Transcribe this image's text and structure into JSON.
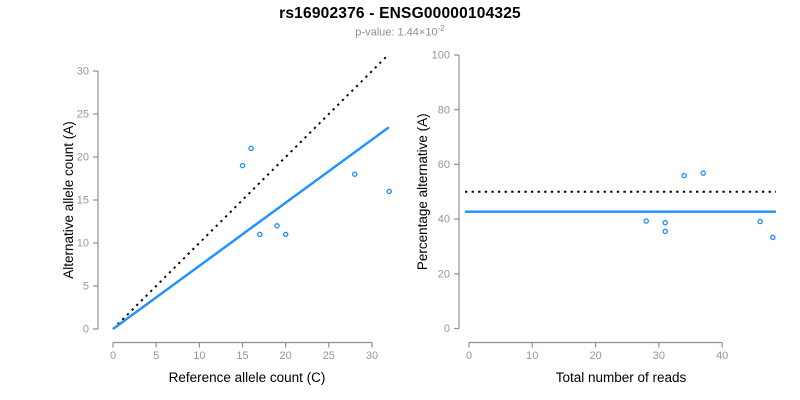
{
  "title": "rs16902376 - ENSG00000104325",
  "subtitle": {
    "prefix": "p-value: 1.44×10",
    "exponent": "-2"
  },
  "colors": {
    "accent_blue": "#1e90ff",
    "axis_gray": "#909090",
    "tick_label_gray": "#969696",
    "text_black": "#000000",
    "subtitle_gray": "#8f8f8f"
  },
  "chart_data": [
    {
      "type": "scatter",
      "panel": "left",
      "xlabel": "Reference allele count (C)",
      "ylabel": "Alternative allele count (A)",
      "xlim": [
        0,
        32
      ],
      "ylim": [
        0,
        32
      ],
      "xticks": [
        0,
        5,
        10,
        15,
        20,
        25,
        30
      ],
      "yticks": [
        0,
        5,
        10,
        15,
        20,
        25,
        30
      ],
      "grid": false,
      "legend": null,
      "marker": "open-circle",
      "marker_color": "#1e90ff",
      "points": [
        [
          15,
          19
        ],
        [
          16,
          21
        ],
        [
          17,
          11
        ],
        [
          19,
          12
        ],
        [
          20,
          11
        ],
        [
          28,
          18
        ],
        [
          32,
          16
        ]
      ],
      "lines": [
        {
          "name": "identity-line",
          "style": "dotted",
          "color": "#000000",
          "slope": 1,
          "intercept": 0
        },
        {
          "name": "fit-line",
          "style": "solid",
          "color": "#1e90ff",
          "slope": 0.734,
          "intercept": 0
        }
      ]
    },
    {
      "type": "scatter",
      "panel": "right",
      "xlabel": "Total number of reads",
      "ylabel": "Percentage alternative (A)",
      "xlim": [
        0,
        48
      ],
      "ylim": [
        0,
        100
      ],
      "xticks": [
        0,
        10,
        20,
        30,
        40
      ],
      "yticks": [
        0,
        20,
        40,
        60,
        80,
        100
      ],
      "grid": false,
      "legend": null,
      "marker": "open-circle",
      "marker_color": "#1e90ff",
      "points": [
        [
          34,
          55.9
        ],
        [
          37,
          56.8
        ],
        [
          28,
          39.3
        ],
        [
          31,
          38.7
        ],
        [
          31,
          35.5
        ],
        [
          46,
          39.1
        ],
        [
          48,
          33.3
        ]
      ],
      "lines": [
        {
          "name": "expected-50pct-line",
          "style": "dotted",
          "color": "#000000",
          "y": 50
        },
        {
          "name": "fit-line",
          "style": "solid",
          "color": "#1e90ff",
          "y": 42.7
        }
      ]
    }
  ]
}
